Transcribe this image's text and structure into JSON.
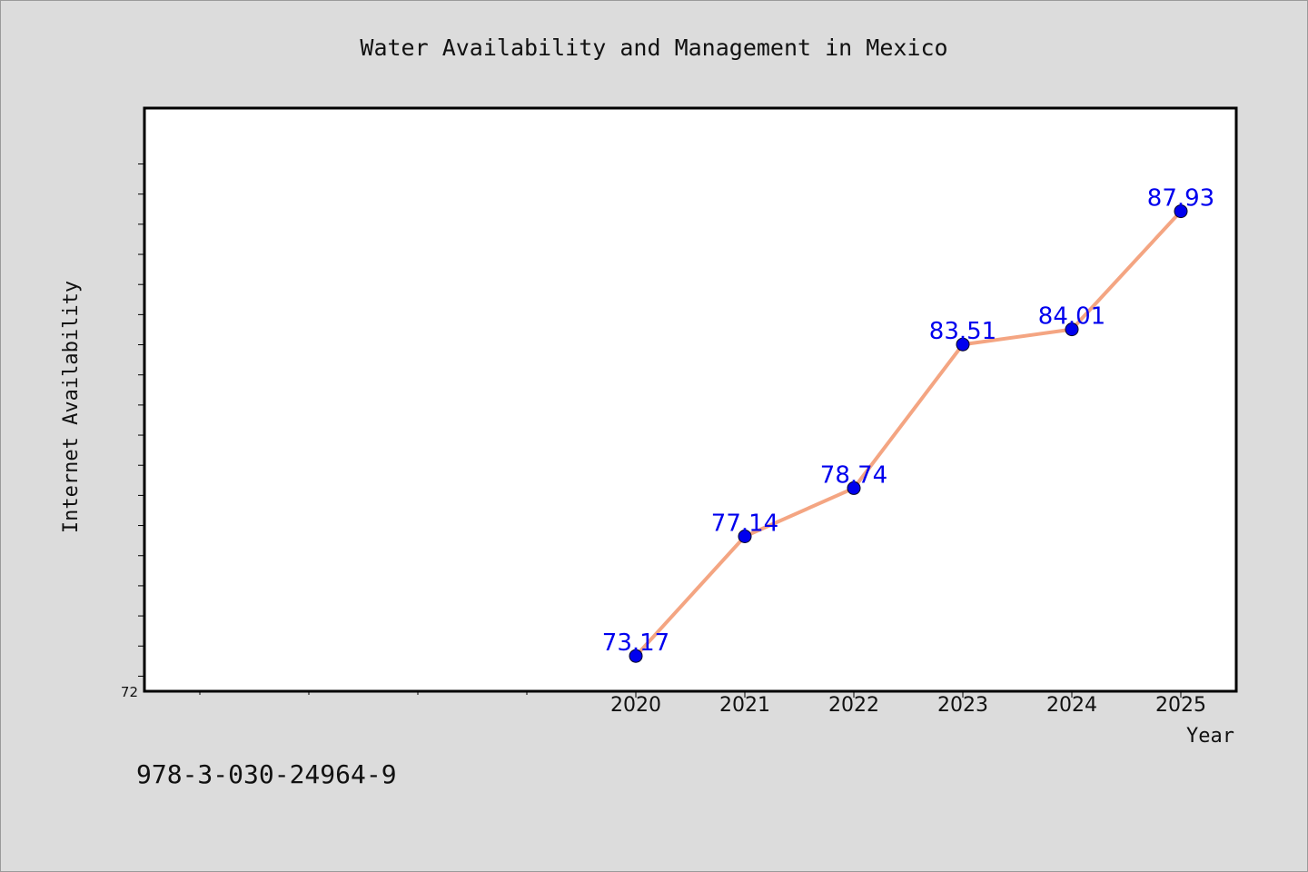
{
  "chart_data": {
    "type": "line",
    "title": "Water Availability and Management in Mexico",
    "xlabel": "Year",
    "ylabel": "Internet Availability",
    "x": [
      "2020",
      "2021",
      "2022",
      "2023",
      "2024",
      "2025"
    ],
    "series": [
      {
        "values": [
          73.17,
          77.14,
          78.74,
          83.51,
          84.01,
          87.93
        ]
      }
    ],
    "data_labels": [
      "73.17",
      "77.14",
      "78.74",
      "83.51",
      "84.01",
      "87.93"
    ],
    "ylim": [
      72,
      90
    ],
    "ytick_labels": [
      "72"
    ],
    "grid": false,
    "colors": {
      "line": "#f4a582",
      "marker": "#0000ee",
      "label": "#0000ee"
    }
  },
  "footer": {
    "isbn": "978-3-030-24964-9"
  }
}
